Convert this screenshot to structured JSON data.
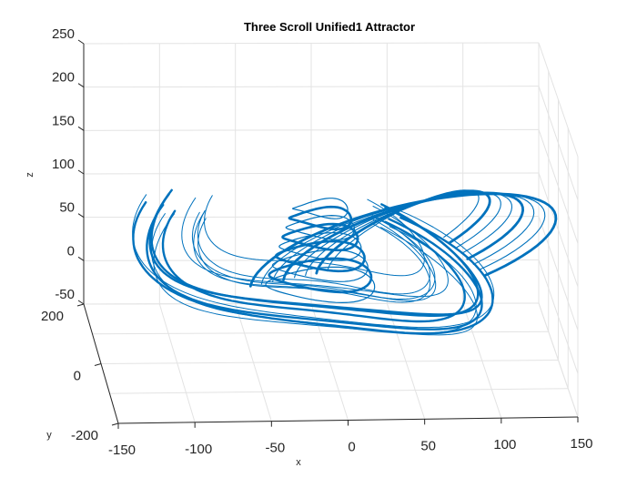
{
  "chart_data": {
    "type": "line",
    "title": "Three Scroll Unified1 Attractor",
    "xlabel": "x",
    "ylabel": "y",
    "zlabel": "z",
    "xlim": [
      -150,
      150
    ],
    "ylim": [
      -200,
      200
    ],
    "zlim": [
      -50,
      250
    ],
    "x_ticks": [
      -150,
      -100,
      -50,
      0,
      50,
      100,
      150
    ],
    "y_ticks": [
      -200,
      0,
      200
    ],
    "z_ticks": [
      -50,
      0,
      50,
      100,
      150,
      200,
      250
    ],
    "grid": true,
    "color": "#0072bd",
    "series": [
      {
        "name": "",
        "description_points_xyz": [
          [
            -110,
            180,
            70
          ],
          [
            -90,
            150,
            110
          ],
          [
            -60,
            120,
            130
          ],
          [
            -30,
            100,
            140
          ],
          [
            0,
            80,
            150
          ],
          [
            30,
            60,
            145
          ],
          [
            60,
            30,
            135
          ],
          [
            85,
            0,
            120
          ],
          [
            100,
            -30,
            100
          ],
          [
            105,
            -60,
            80
          ],
          [
            95,
            -90,
            60
          ],
          [
            70,
            -110,
            45
          ],
          [
            40,
            -120,
            35
          ],
          [
            0,
            -115,
            30
          ],
          [
            -40,
            -100,
            35
          ],
          [
            -75,
            -60,
            50
          ],
          [
            -100,
            -10,
            65
          ],
          [
            -115,
            50,
            75
          ],
          [
            -120,
            110,
            80
          ],
          [
            -115,
            170,
            75
          ]
        ]
      }
    ]
  }
}
